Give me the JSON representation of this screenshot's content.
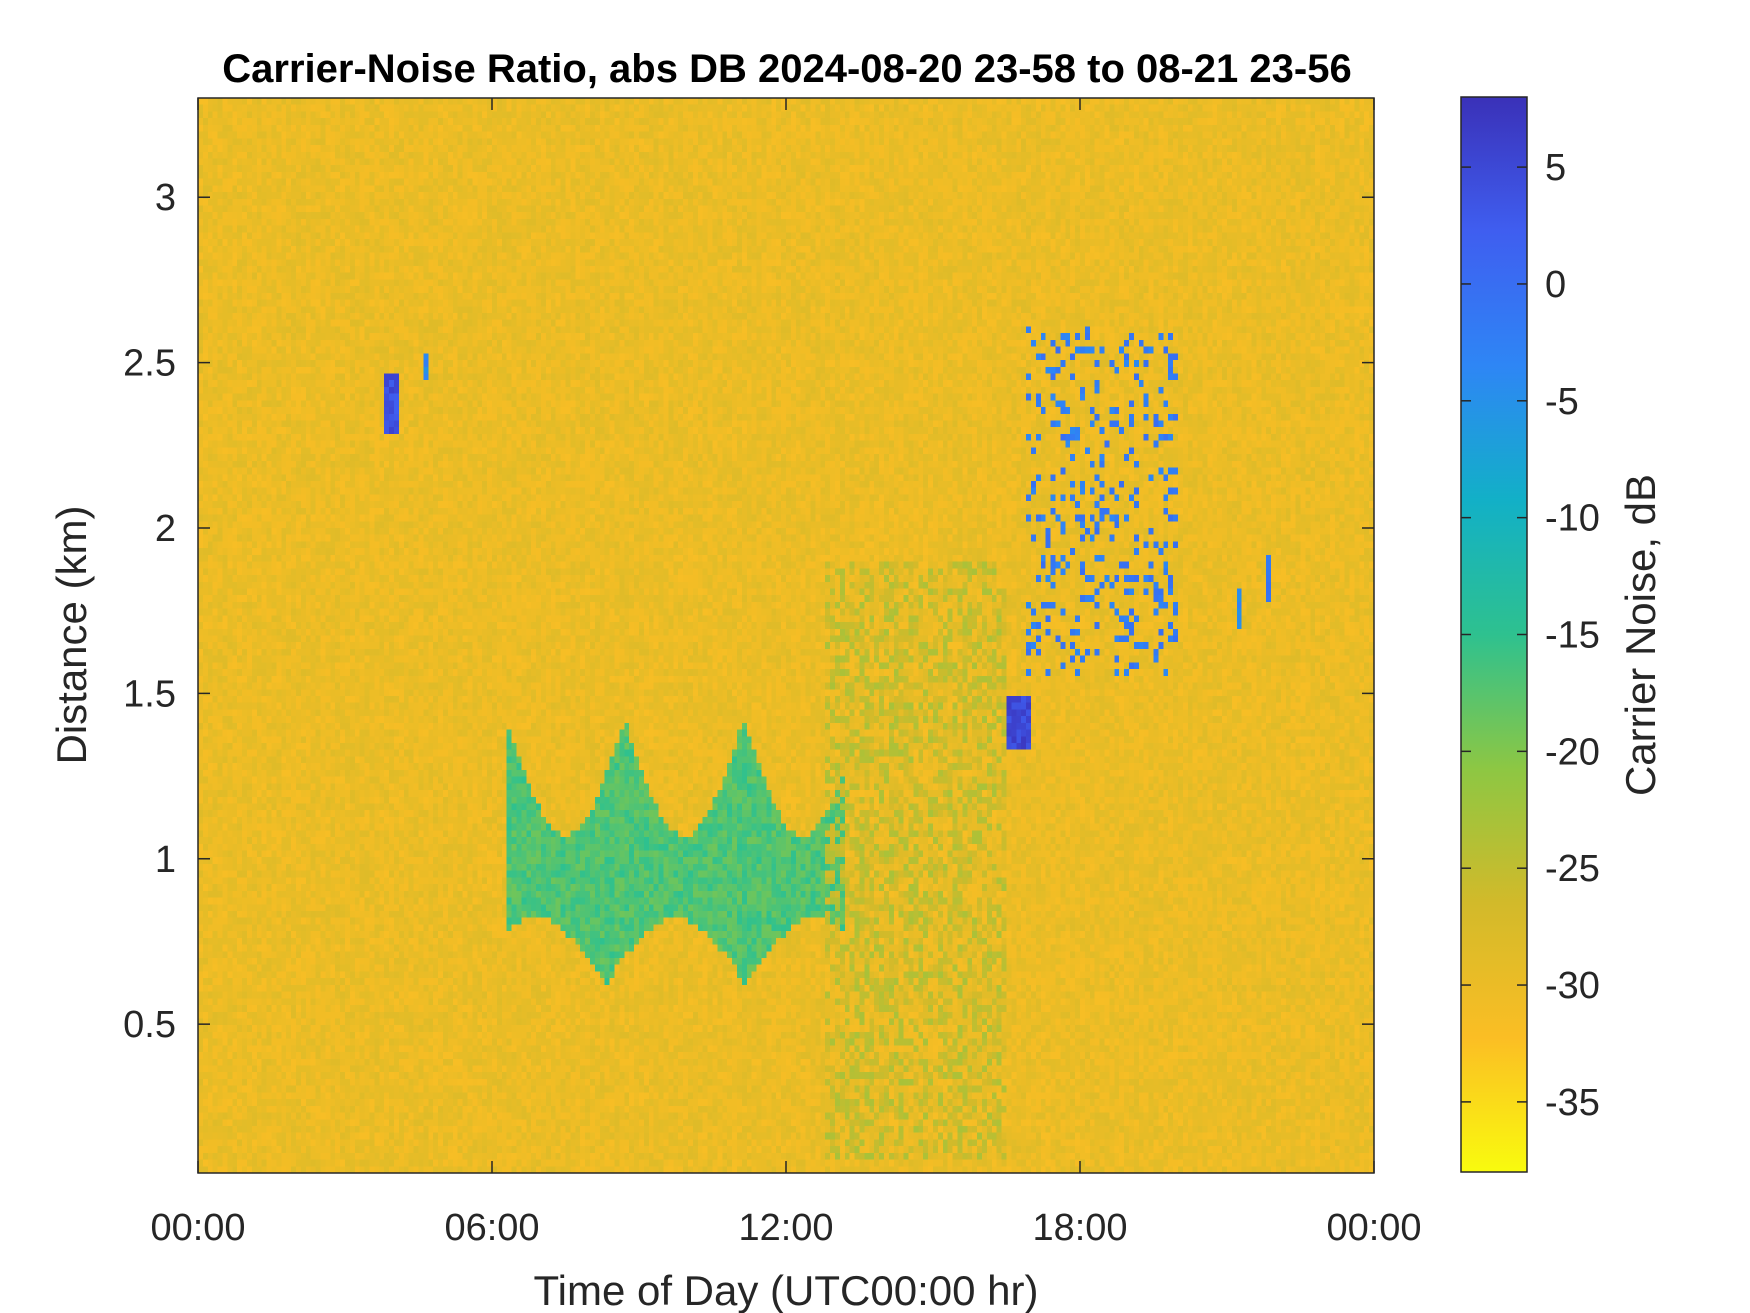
{
  "chart_data": {
    "type": "heatmap",
    "title": "Carrier-Noise Ratio, abs DB 2024-08-20 23-58 to 08-21 23-56",
    "xlabel": "Time of Day (UTC00:00 hr)",
    "ylabel": "Distance (km)",
    "colorbar_label": "Carrier Noise, dB",
    "xlim_hours": [
      0,
      24
    ],
    "ylim_km": [
      0.05,
      3.3
    ],
    "clim_db": [
      -38,
      8
    ],
    "x_ticks": [
      {
        "value": 0,
        "label": "00:00"
      },
      {
        "value": 6,
        "label": "06:00"
      },
      {
        "value": 12,
        "label": "12:00"
      },
      {
        "value": 18,
        "label": "18:00"
      },
      {
        "value": 24,
        "label": "00:00"
      }
    ],
    "y_ticks": [
      {
        "value": 0.5,
        "label": "0.5"
      },
      {
        "value": 1,
        "label": "1"
      },
      {
        "value": 1.5,
        "label": "1.5"
      },
      {
        "value": 2,
        "label": "2"
      },
      {
        "value": 2.5,
        "label": "2.5"
      },
      {
        "value": 3,
        "label": "3"
      }
    ],
    "colorbar_ticks": [
      {
        "value": 5,
        "label": "5"
      },
      {
        "value": 0,
        "label": "0"
      },
      {
        "value": -5,
        "label": "-5"
      },
      {
        "value": -10,
        "label": "-10"
      },
      {
        "value": -15,
        "label": "-15"
      },
      {
        "value": -20,
        "label": "-20"
      },
      {
        "value": -25,
        "label": "-25"
      },
      {
        "value": -30,
        "label": "-30"
      },
      {
        "value": -35,
        "label": "-35"
      }
    ],
    "colormap": "parula-reversed",
    "colormap_stops": [
      "#f9fb0e",
      "#fbbe24",
      "#d2ba2a",
      "#8dc743",
      "#2ec18f",
      "#12b0c7",
      "#2e86f5",
      "#3f5ef0",
      "#3a31b8"
    ],
    "background_value_db": -30,
    "features": [
      {
        "name": "boundary-layer band",
        "t_start_h": 6.3,
        "t_end_h": 13.2,
        "d_min_km": 0.62,
        "d_max_km": 1.57,
        "value_db": -17
      },
      {
        "name": "weak plume",
        "t_start_h": 12.8,
        "t_end_h": 16.5,
        "d_min_km": 0.1,
        "d_max_km": 1.9,
        "value_db": -25
      },
      {
        "name": "cloud patch",
        "t_start_h": 3.8,
        "t_end_h": 4.1,
        "d_min_km": 2.28,
        "d_max_km": 2.47,
        "value_db": 4
      },
      {
        "name": "cloud patch",
        "t_start_h": 4.6,
        "t_end_h": 4.7,
        "d_min_km": 2.44,
        "d_max_km": 2.53,
        "value_db": -4
      },
      {
        "name": "cloud cluster",
        "t_start_h": 16.5,
        "t_end_h": 17.0,
        "d_min_km": 1.33,
        "d_max_km": 1.5,
        "value_db": 5
      },
      {
        "name": "cloud streaks",
        "t_start_h": 16.9,
        "t_end_h": 20.0,
        "d_min_km": 1.55,
        "d_max_km": 2.6,
        "value_db": -2
      },
      {
        "name": "cloud patch",
        "t_start_h": 21.2,
        "t_end_h": 21.3,
        "d_min_km": 1.7,
        "d_max_km": 1.82,
        "value_db": -3
      },
      {
        "name": "cloud patch",
        "t_start_h": 21.8,
        "t_end_h": 21.9,
        "d_min_km": 1.78,
        "d_max_km": 1.92,
        "value_db": -1
      }
    ]
  }
}
